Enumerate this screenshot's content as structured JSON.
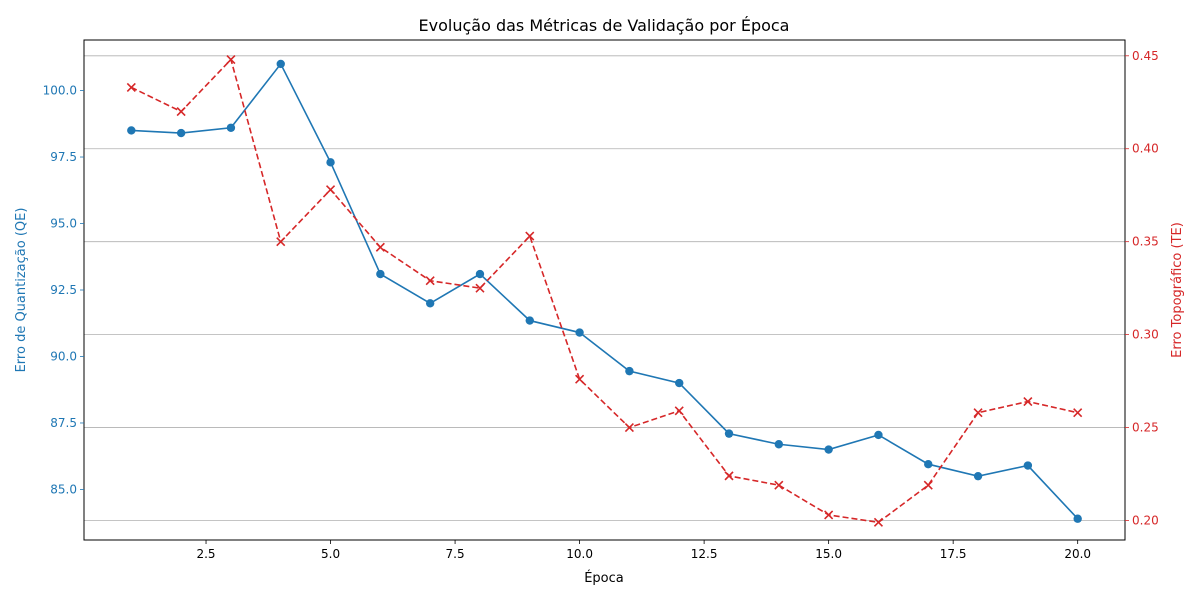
{
  "chart_data": {
    "type": "line",
    "title": "Evolução das Métricas de Validação por Época",
    "xlabel": "Época",
    "ylabel_left": "Erro de Quantização (QE)",
    "ylabel_right": "Erro Topográfico (TE)",
    "x": [
      1,
      2,
      3,
      4,
      5,
      6,
      7,
      8,
      9,
      10,
      11,
      12,
      13,
      14,
      15,
      16,
      17,
      18,
      19,
      20
    ],
    "xlim": [
      0.05,
      20.95
    ],
    "xticks": [
      2.5,
      5.0,
      7.5,
      10.0,
      12.5,
      15.0,
      17.5,
      20.0
    ],
    "xtick_labels": [
      "2.5",
      "5.0",
      "7.5",
      "10.0",
      "12.5",
      "15.0",
      "17.5",
      "20.0"
    ],
    "left_axis": {
      "ylim": [
        83.1,
        101.9
      ],
      "yticks": [
        85.0,
        87.5,
        90.0,
        92.5,
        95.0,
        97.5,
        100.0
      ],
      "ytick_labels": [
        "85.0",
        "87.5",
        "90.0",
        "92.5",
        "95.0",
        "97.5",
        "100.0"
      ],
      "color": "#1f77b4"
    },
    "right_axis": {
      "ylim": [
        0.1895,
        0.4585
      ],
      "yticks": [
        0.2,
        0.25,
        0.3,
        0.35,
        0.4,
        0.45
      ],
      "ytick_labels": [
        "0.20",
        "0.25",
        "0.30",
        "0.35",
        "0.40",
        "0.45"
      ],
      "color": "#d62728"
    },
    "grid": "right-axis horizontal",
    "series": [
      {
        "axis": "left",
        "color": "#1f77b4",
        "style": "solid",
        "marker": "circle",
        "values": [
          98.5,
          98.4,
          98.6,
          101.0,
          97.3,
          93.1,
          92.0,
          93.1,
          91.35,
          90.9,
          89.45,
          89.0,
          87.1,
          86.7,
          86.5,
          87.05,
          85.95,
          85.5,
          85.9,
          83.9
        ]
      },
      {
        "axis": "right",
        "color": "#d62728",
        "style": "dashed",
        "marker": "x",
        "values": [
          0.433,
          0.42,
          0.448,
          0.35,
          0.378,
          0.347,
          0.329,
          0.325,
          0.353,
          0.276,
          0.25,
          0.259,
          0.224,
          0.219,
          0.203,
          0.199,
          0.219,
          0.258,
          0.264,
          0.258
        ]
      }
    ]
  }
}
